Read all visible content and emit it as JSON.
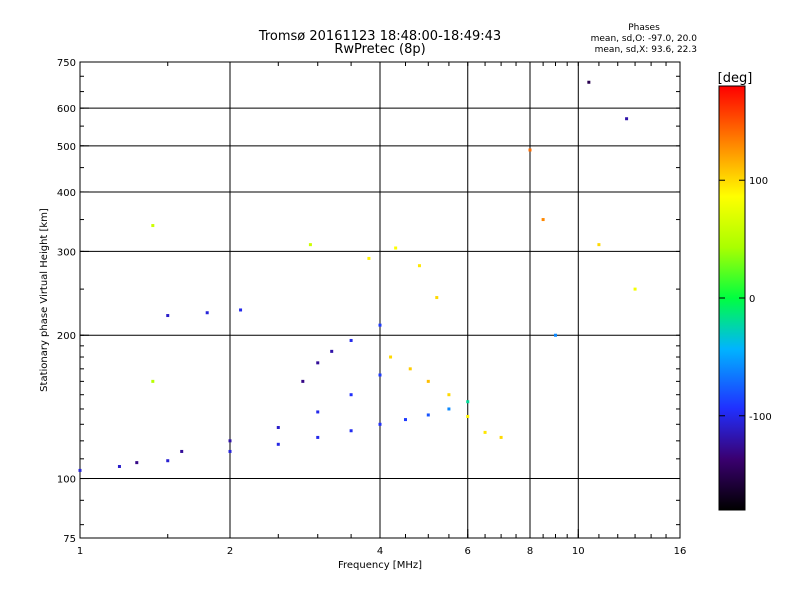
{
  "title_line1": "Tromsø 20161123 18:48:00-18:49:43",
  "title_line2": "RwPretec (8p)",
  "stats": {
    "heading": "Phases",
    "line_o": "mean, sd,O: -97.0, 20.0",
    "line_x": "mean, sd,X:  93.6, 22.3"
  },
  "colorbar": {
    "label": "[deg]",
    "ticks": [
      {
        "value": 100,
        "label": "100"
      },
      {
        "value": 0,
        "label": "0"
      },
      {
        "value": -100,
        "label": "-100"
      }
    ],
    "range": [
      -180,
      180
    ]
  },
  "chart_data": {
    "type": "scatter",
    "xlabel": "Frequency [MHz]",
    "ylabel": "Stationary phase Virtual Height [km]",
    "xscale": "log",
    "yscale": "log",
    "xlim": [
      1,
      16
    ],
    "ylim": [
      75,
      750
    ],
    "xticks": [
      {
        "v": 1,
        "label": "1"
      },
      {
        "v": 2,
        "label": "2"
      },
      {
        "v": 4,
        "label": "4"
      },
      {
        "v": 6,
        "label": "6"
      },
      {
        "v": 8,
        "label": "8"
      },
      {
        "v": 10,
        "label": "10"
      },
      {
        "v": 16,
        "label": "16"
      }
    ],
    "yticks": [
      {
        "v": 75,
        "label": "75"
      },
      {
        "v": 100,
        "label": "100"
      },
      {
        "v": 200,
        "label": "200"
      },
      {
        "v": 300,
        "label": "300"
      },
      {
        "v": 400,
        "label": "400"
      },
      {
        "v": 500,
        "label": "500"
      },
      {
        "v": 600,
        "label": "600"
      },
      {
        "v": 750,
        "label": "750"
      }
    ],
    "grid_x": [
      2,
      4,
      6,
      8,
      10
    ],
    "grid_y": [
      100,
      200,
      300,
      400,
      500,
      600
    ],
    "colormap": "rainbow phase, black (-180) to red (180)",
    "series": [
      {
        "values": [
          [
            1.0,
            104,
            -105
          ],
          [
            1.2,
            106,
            -110
          ],
          [
            1.5,
            109,
            -108
          ],
          [
            2.0,
            114,
            -105
          ],
          [
            2.5,
            118,
            -102
          ],
          [
            3.0,
            122,
            -100
          ],
          [
            3.5,
            126,
            -98
          ],
          [
            4.0,
            130,
            -95
          ],
          [
            4.5,
            133,
            -90
          ],
          [
            5.0,
            136,
            -80
          ],
          [
            5.5,
            140,
            -60
          ],
          [
            6.0,
            145,
            -20
          ]
        ]
      },
      {
        "values": [
          [
            1.3,
            108,
            -130
          ],
          [
            1.6,
            114,
            -125
          ],
          [
            2.0,
            120,
            -120
          ],
          [
            2.5,
            128,
            -110
          ],
          [
            3.0,
            138,
            -100
          ],
          [
            3.5,
            150,
            -95
          ],
          [
            4.0,
            165,
            -90
          ]
        ]
      },
      {
        "values": [
          [
            1.5,
            220,
            -110
          ],
          [
            1.8,
            223,
            -105
          ],
          [
            2.1,
            226,
            -100
          ]
        ]
      },
      {
        "values": [
          [
            2.8,
            160,
            -130
          ],
          [
            3.0,
            175,
            -125
          ],
          [
            3.2,
            185,
            -120
          ],
          [
            3.5,
            195,
            -100
          ],
          [
            4.0,
            210,
            -90
          ]
        ]
      },
      {
        "values": [
          [
            4.2,
            180,
            100
          ],
          [
            4.6,
            170,
            105
          ],
          [
            5.0,
            160,
            110
          ],
          [
            5.5,
            150,
            100
          ],
          [
            6.0,
            135,
            90
          ],
          [
            6.5,
            125,
            95
          ],
          [
            7.0,
            122,
            100
          ]
        ]
      },
      {
        "values": [
          [
            3.8,
            290,
            90
          ],
          [
            4.3,
            305,
            85
          ],
          [
            4.8,
            280,
            95
          ],
          [
            5.2,
            240,
            100
          ]
        ]
      },
      {
        "values": [
          [
            1.4,
            340,
            60
          ],
          [
            1.4,
            160,
            50
          ],
          [
            2.9,
            310,
            60
          ],
          [
            8.0,
            490,
            140
          ],
          [
            8.5,
            350,
            130
          ],
          [
            10.5,
            680,
            -150
          ],
          [
            12.5,
            570,
            -120
          ],
          [
            11.0,
            310,
            100
          ],
          [
            13.0,
            250,
            80
          ],
          [
            9.0,
            200,
            -60
          ]
        ]
      }
    ]
  }
}
